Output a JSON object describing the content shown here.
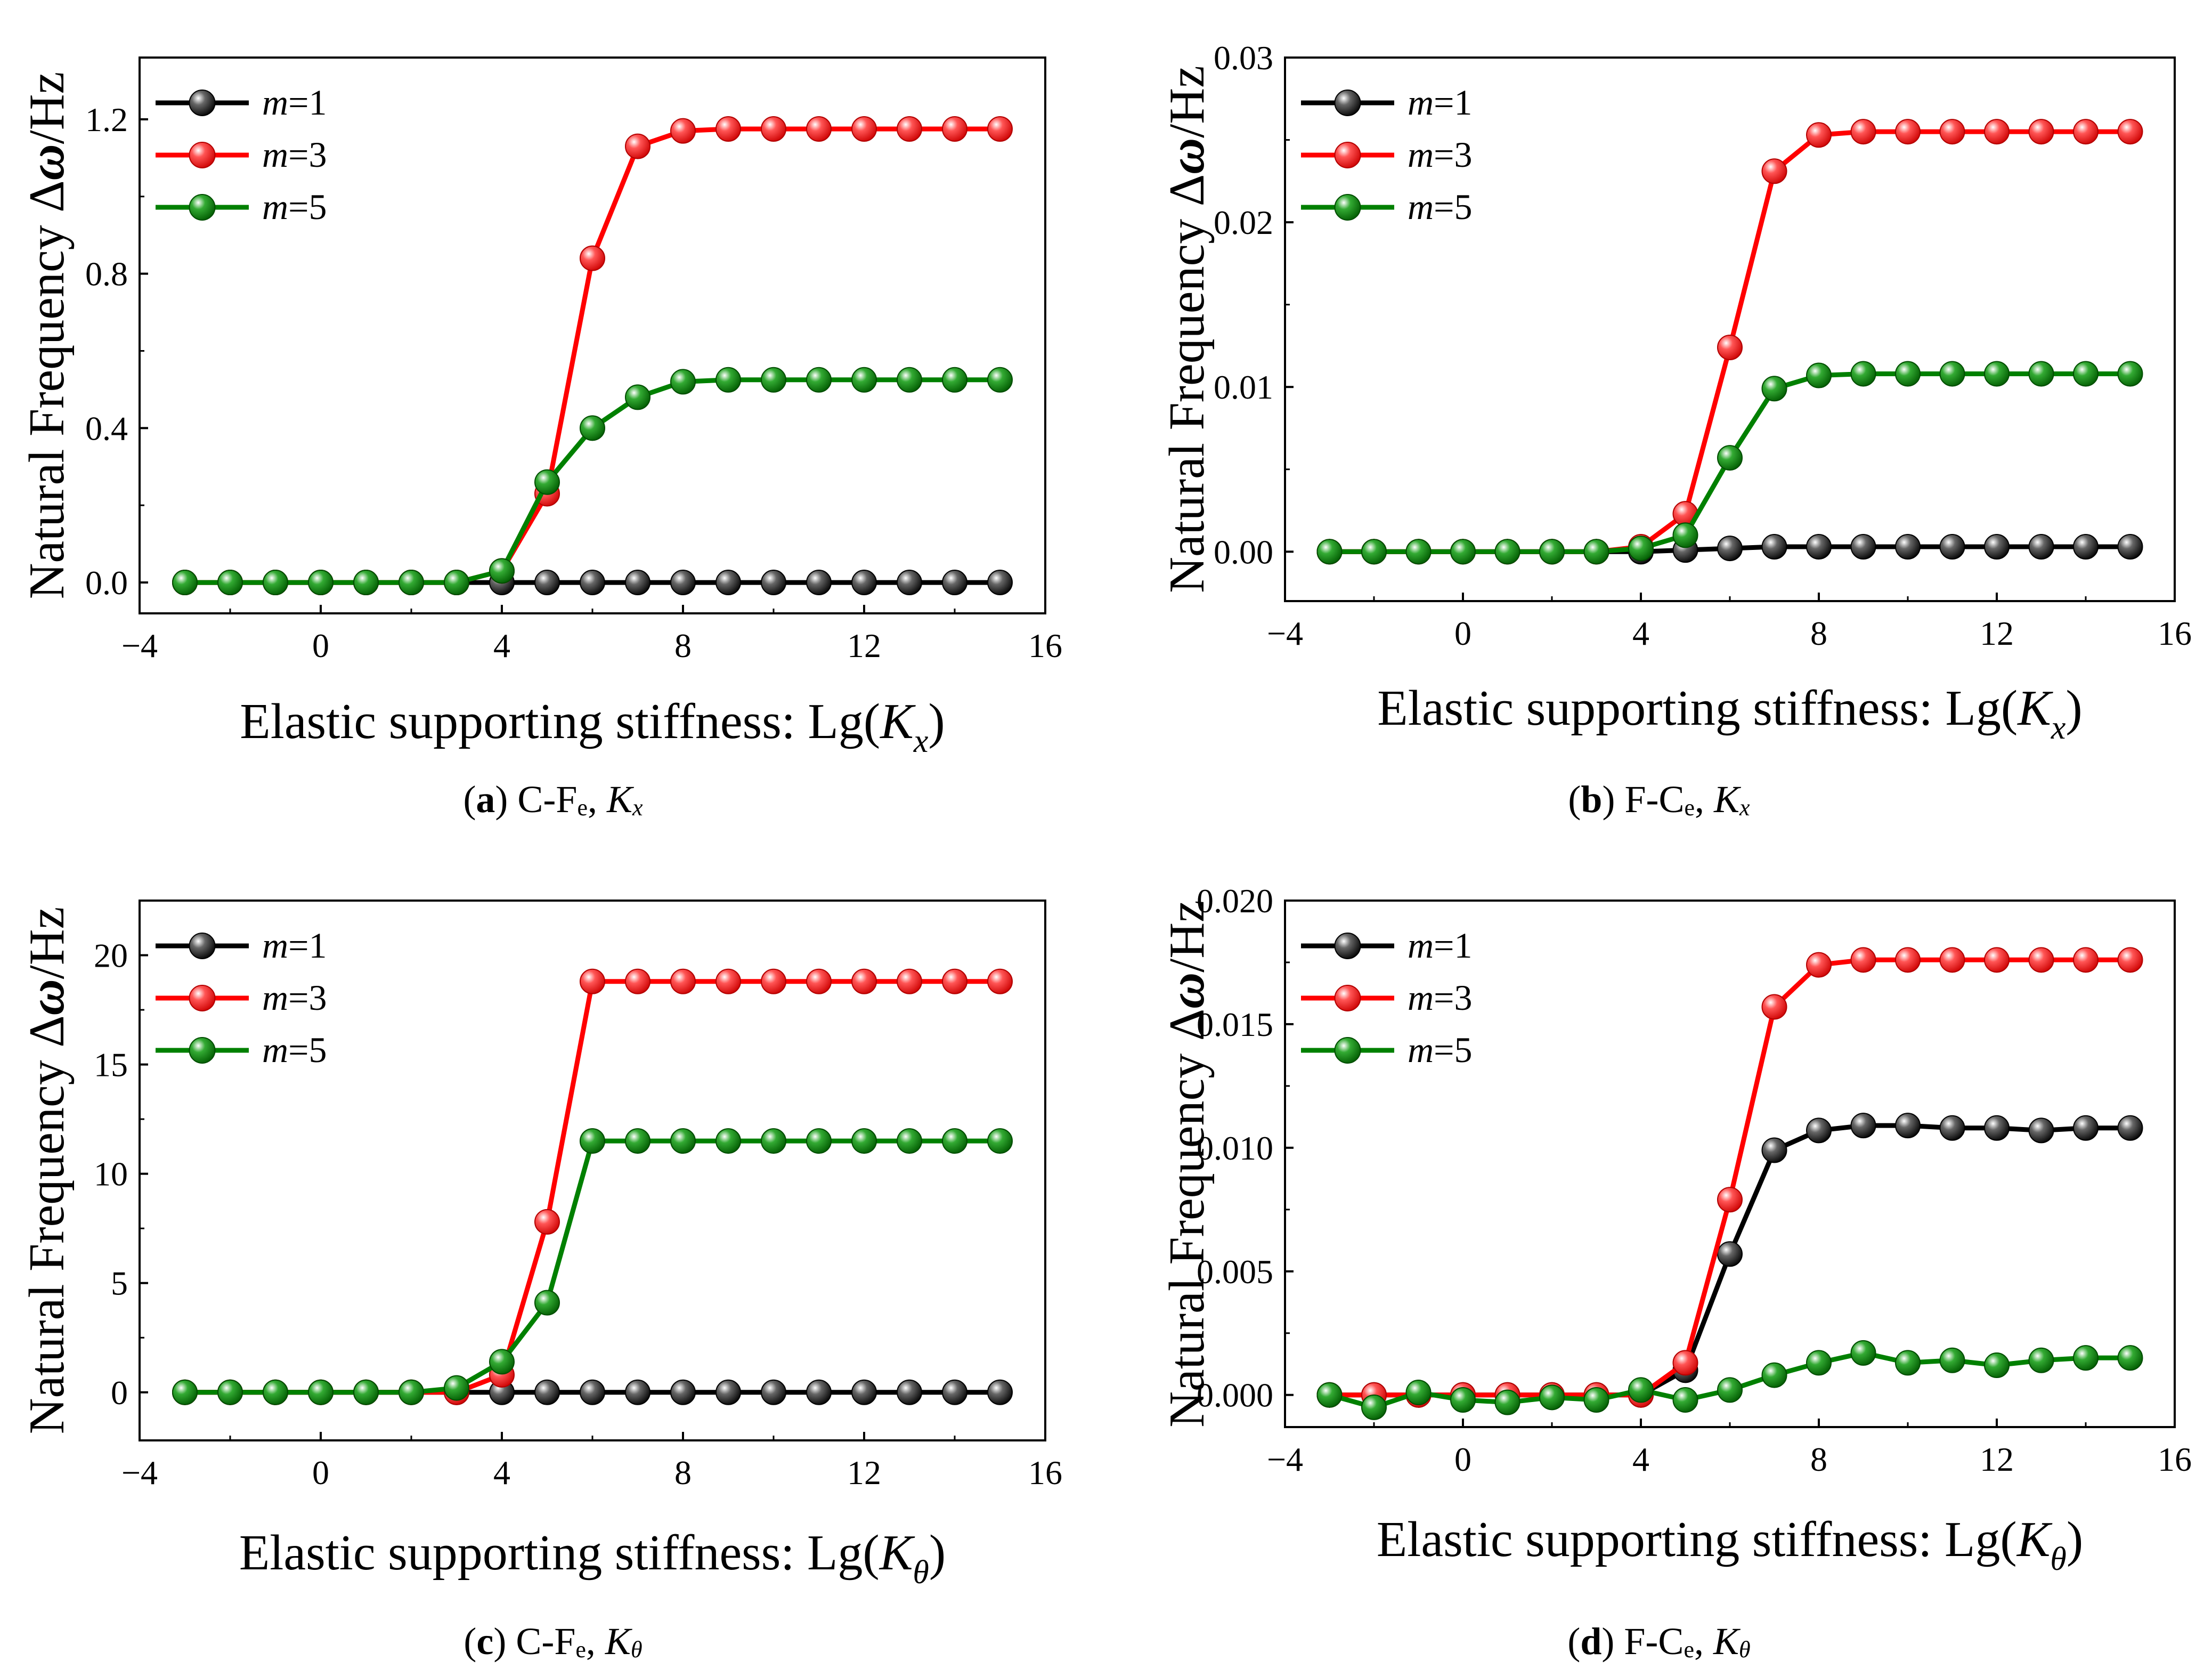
{
  "figure": {
    "captions": [
      {
        "letter": "a",
        "open": "(",
        "close": ")",
        "config": "C-F",
        "sub": "e",
        "sep": ",",
        "stiff": "K",
        "stiff_sub": "x"
      },
      {
        "letter": "b",
        "open": "(",
        "close": ")",
        "config": "F-C",
        "sub": "e",
        "sep": ",",
        "stiff": "K",
        "stiff_sub": "x"
      },
      {
        "letter": "c",
        "open": "(",
        "close": ")",
        "config": "C-F",
        "sub": "e",
        "sep": ",",
        "stiff": "K",
        "stiff_sub": "θ"
      },
      {
        "letter": "d",
        "open": "(",
        "close": ")",
        "config": "F-C",
        "sub": "e",
        "sep": ",",
        "stiff": "K",
        "stiff_sub": "θ"
      }
    ]
  },
  "chart_data": [
    {
      "type": "line",
      "panel": "a",
      "title": "",
      "ylabel": {
        "prefix": "Natural Frequency Δ",
        "symbol": "ω",
        "suffix": "/Hz"
      },
      "xlabel": {
        "prefix": "Elastic supporting stiffness: Lg(",
        "var": "K",
        "sub": "x",
        "suffix": ")"
      },
      "xlim": [
        -4,
        16
      ],
      "ylim": [
        -0.08,
        1.36
      ],
      "xticks": [
        -4,
        0,
        4,
        8,
        12,
        16
      ],
      "xtick_labels": [
        "−4",
        "0",
        "4",
        "8",
        "12",
        "16"
      ],
      "yticks": [
        0,
        0.4,
        0.8,
        1.2
      ],
      "ytick_labels": [
        "0.0",
        "0.4",
        "0.8",
        "1.2"
      ],
      "legend": "top-left",
      "x": [
        -3,
        -2,
        -1,
        0,
        1,
        2,
        3,
        4,
        5,
        6,
        7,
        8,
        9,
        10,
        11,
        12,
        13,
        14,
        15
      ],
      "series": [
        {
          "name_var": "m",
          "name_val": "=1",
          "color": "#000000",
          "values": [
            0,
            0,
            0,
            0,
            0,
            0,
            0,
            0,
            0,
            0,
            0,
            0,
            0,
            0,
            0,
            0,
            0,
            0,
            0
          ]
        },
        {
          "name_var": "m",
          "name_val": "=3",
          "color": "#ff0000",
          "values": [
            0,
            0,
            0,
            0,
            0,
            0,
            0,
            0.03,
            0.23,
            0.84,
            1.13,
            1.17,
            1.175,
            1.175,
            1.175,
            1.175,
            1.175,
            1.175,
            1.175
          ]
        },
        {
          "name_var": "m",
          "name_val": "=5",
          "color": "#008000",
          "values": [
            0,
            0,
            0,
            0,
            0,
            0,
            0,
            0.03,
            0.26,
            0.4,
            0.48,
            0.52,
            0.525,
            0.525,
            0.525,
            0.525,
            0.525,
            0.525,
            0.525
          ]
        }
      ]
    },
    {
      "type": "line",
      "panel": "b",
      "title": "",
      "ylabel": {
        "prefix": "Natural Frequency Δ",
        "symbol": "ω",
        "suffix": "/Hz"
      },
      "xlabel": {
        "prefix": "Elastic supporting stiffness: Lg(",
        "var": "K",
        "sub": "x",
        "suffix": ")"
      },
      "xlim": [
        -4,
        16
      ],
      "ylim": [
        -0.003,
        0.03
      ],
      "xticks": [
        -4,
        0,
        4,
        8,
        12,
        16
      ],
      "xtick_labels": [
        "−4",
        "0",
        "4",
        "8",
        "12",
        "16"
      ],
      "yticks": [
        0,
        0.01,
        0.02,
        0.03
      ],
      "ytick_labels": [
        "0.00",
        "0.01",
        "0.02",
        "0.03"
      ],
      "legend": "top-left",
      "x": [
        -3,
        -2,
        -1,
        0,
        1,
        2,
        3,
        4,
        5,
        6,
        7,
        8,
        9,
        10,
        11,
        12,
        13,
        14,
        15
      ],
      "series": [
        {
          "name_var": "m",
          "name_val": "=1",
          "color": "#000000",
          "values": [
            0,
            0,
            0,
            0,
            0,
            0,
            0,
            0,
            0.0001,
            0.0002,
            0.0003,
            0.0003,
            0.0003,
            0.0003,
            0.0003,
            0.0003,
            0.0003,
            0.0003,
            0.0003
          ]
        },
        {
          "name_var": "m",
          "name_val": "=3",
          "color": "#ff0000",
          "values": [
            0,
            0,
            0,
            0,
            0,
            0,
            0,
            0.0003,
            0.0023,
            0.0124,
            0.0231,
            0.0253,
            0.0255,
            0.0255,
            0.0255,
            0.0255,
            0.0255,
            0.0255,
            0.0255
          ]
        },
        {
          "name_var": "m",
          "name_val": "=5",
          "color": "#008000",
          "values": [
            0,
            0,
            0,
            0,
            0,
            0,
            0,
            0.0002,
            0.001,
            0.0057,
            0.0099,
            0.0107,
            0.0108,
            0.0108,
            0.0108,
            0.0108,
            0.0108,
            0.0108,
            0.0108
          ]
        }
      ]
    },
    {
      "type": "line",
      "panel": "c",
      "title": "",
      "ylabel": {
        "prefix": "Natural Frequency Δ",
        "symbol": "ω",
        "suffix": "/Hz"
      },
      "xlabel": {
        "prefix": "Elastic supporting stiffness: Lg(",
        "var": "K",
        "sub": "θ",
        "suffix": ")"
      },
      "xlim": [
        -4,
        16
      ],
      "ylim": [
        -2.2,
        22.5
      ],
      "xticks": [
        -4,
        0,
        4,
        8,
        12,
        16
      ],
      "xtick_labels": [
        "−4",
        "0",
        "4",
        "8",
        "12",
        "16"
      ],
      "yticks": [
        0,
        5,
        10,
        15,
        20
      ],
      "ytick_labels": [
        "0",
        "5",
        "10",
        "15",
        "20"
      ],
      "legend": "top-left",
      "x": [
        -3,
        -2,
        -1,
        0,
        1,
        2,
        3,
        4,
        5,
        6,
        7,
        8,
        9,
        10,
        11,
        12,
        13,
        14,
        15
      ],
      "series": [
        {
          "name_var": "m",
          "name_val": "=1",
          "color": "#000000",
          "values": [
            0,
            0,
            0,
            0,
            0,
            0,
            0,
            0,
            0,
            0,
            0,
            0,
            0,
            0,
            0,
            0,
            0,
            0,
            0
          ]
        },
        {
          "name_var": "m",
          "name_val": "=3",
          "color": "#ff0000",
          "values": [
            0,
            0,
            0,
            0,
            0,
            0,
            0,
            0.8,
            7.8,
            18.8,
            18.8,
            18.8,
            18.8,
            18.8,
            18.8,
            18.8,
            18.8,
            18.8,
            18.8
          ]
        },
        {
          "name_var": "m",
          "name_val": "=5",
          "color": "#008000",
          "values": [
            0,
            0,
            0,
            0,
            0,
            0,
            0.2,
            1.4,
            4.1,
            11.5,
            11.5,
            11.5,
            11.5,
            11.5,
            11.5,
            11.5,
            11.5,
            11.5,
            11.5
          ]
        }
      ]
    },
    {
      "type": "line",
      "panel": "d",
      "title": "",
      "ylabel": {
        "prefix": "Natural Frequency Δ",
        "symbol": "ω",
        "suffix": "/Hz"
      },
      "xlabel": {
        "prefix": "Elastic supporting stiffness: Lg(",
        "var": "K",
        "sub": "θ",
        "suffix": ")"
      },
      "xlim": [
        -4,
        16
      ],
      "ylim": [
        -0.0013,
        0.02
      ],
      "xticks": [
        -4,
        0,
        4,
        8,
        12,
        16
      ],
      "xtick_labels": [
        "−4",
        "0",
        "4",
        "8",
        "12",
        "16"
      ],
      "yticks": [
        0,
        0.005,
        0.01,
        0.015,
        0.02
      ],
      "ytick_labels": [
        "0.000",
        "0.005",
        "0.010",
        "0.015",
        "0.020"
      ],
      "legend": "top-left",
      "x": [
        -3,
        -2,
        -1,
        0,
        1,
        2,
        3,
        4,
        5,
        6,
        7,
        8,
        9,
        10,
        11,
        12,
        13,
        14,
        15
      ],
      "series": [
        {
          "name_var": "m",
          "name_val": "=1",
          "color": "#000000",
          "values": [
            0,
            0,
            0,
            0,
            0,
            0,
            0,
            0,
            0.001,
            0.0057,
            0.0099,
            0.0107,
            0.0109,
            0.0109,
            0.0108,
            0.0108,
            0.0107,
            0.0108,
            0.0108
          ]
        },
        {
          "name_var": "m",
          "name_val": "=3",
          "color": "#ff0000",
          "values": [
            0,
            0,
            0,
            0,
            0,
            0,
            0,
            0,
            0.0013,
            0.0079,
            0.0157,
            0.0174,
            0.0176,
            0.0176,
            0.0176,
            0.0176,
            0.0176,
            0.0176,
            0.0176
          ]
        },
        {
          "name_var": "m",
          "name_val": "=5",
          "color": "#008000",
          "values": [
            0,
            -0.0005,
            0.0001,
            -0.0002,
            -0.0003,
            -0.0001,
            -0.0002,
            0.0002,
            -0.0002,
            0.0002,
            0.0008,
            0.0013,
            0.0017,
            0.0013,
            0.0014,
            0.0012,
            0.0014,
            0.0015,
            0.0015
          ]
        }
      ]
    }
  ]
}
